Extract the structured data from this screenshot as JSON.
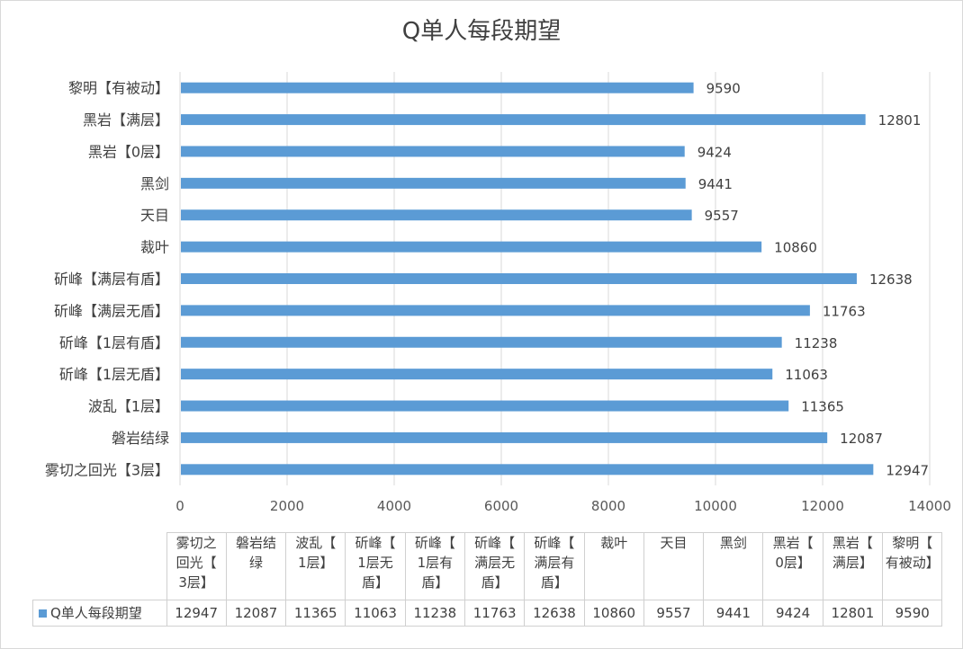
{
  "chart_data": {
    "type": "bar",
    "orientation": "horizontal",
    "title": "Q单人每段期望",
    "categories": [
      "黎明【有被动】",
      "黑岩【满层】",
      "黑岩【0层】",
      "黑剑",
      "天目",
      "裁叶",
      "斫峰【满层有盾】",
      "斫峰【满层无盾】",
      "斫峰【1层有盾】",
      "斫峰【1层无盾】",
      "波乱【1层】",
      "磐岩结绿",
      "雾切之回光【3层】"
    ],
    "series": [
      {
        "name": "Q单人每段期望",
        "color": "#5b9bd5",
        "values": [
          9590,
          12801,
          9424,
          9441,
          9557,
          10860,
          12638,
          11763,
          11238,
          11063,
          11365,
          12087,
          12947
        ]
      }
    ],
    "xlim": [
      0,
      14000
    ],
    "xticks": [
      "0",
      "2000",
      "4000",
      "6000",
      "8000",
      "10000",
      "12000",
      "14000"
    ],
    "grid": true,
    "data_labels": true,
    "data_table": {
      "headers": [
        "雾切之回光【3层】",
        "磐岩结绿",
        "波乱【1层】",
        "斫峰【1层无盾】",
        "斫峰【1层有盾】",
        "斫峰【满层无盾】",
        "斫峰【满层有盾】",
        "裁叶",
        "天目",
        "黑剑",
        "黑岩【0层】",
        "黑岩【满层】",
        "黎明【有被动】"
      ],
      "header_lines": [
        [
          "雾切之",
          "回光【",
          "3层】"
        ],
        [
          "磐岩结",
          "绿"
        ],
        [
          "波乱【",
          "1层】"
        ],
        [
          "斫峰【",
          "1层无",
          "盾】"
        ],
        [
          "斫峰【",
          "1层有",
          "盾】"
        ],
        [
          "斫峰【",
          "满层无",
          "盾】"
        ],
        [
          "斫峰【",
          "满层有",
          "盾】"
        ],
        [
          "裁叶"
        ],
        [
          "天目"
        ],
        [
          "黑剑"
        ],
        [
          "黑岩【",
          "0层】"
        ],
        [
          "黑岩【",
          "满层】"
        ],
        [
          "黎明【",
          "有被动】"
        ]
      ],
      "series_label": "Q单人每段期望",
      "values": [
        "12947",
        "12087",
        "11365",
        "11063",
        "11238",
        "11763",
        "12638",
        "10860",
        "9557",
        "9441",
        "9424",
        "12801",
        "9590"
      ]
    }
  }
}
